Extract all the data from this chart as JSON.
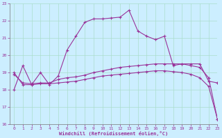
{
  "xlabel": "Windchill (Refroidissement éolien,°C)",
  "background_color": "#cceeff",
  "grid_color": "#aaddcc",
  "line_color": "#993399",
  "x_hours": [
    0,
    1,
    2,
    3,
    4,
    5,
    6,
    7,
    8,
    9,
    10,
    11,
    12,
    13,
    14,
    15,
    16,
    17,
    18,
    19,
    20,
    21,
    22,
    23
  ],
  "series1": [
    18.0,
    19.4,
    18.3,
    19.0,
    18.3,
    18.8,
    20.3,
    21.1,
    21.9,
    22.1,
    22.1,
    22.15,
    22.2,
    22.6,
    21.4,
    21.1,
    20.9,
    21.1,
    19.4,
    19.5,
    19.5,
    19.5,
    18.5,
    18.4
  ],
  "series2": [
    18.9,
    18.4,
    18.35,
    18.4,
    18.4,
    18.6,
    18.7,
    18.75,
    18.85,
    19.0,
    19.1,
    19.2,
    19.3,
    19.35,
    19.4,
    19.45,
    19.5,
    19.5,
    19.5,
    19.5,
    19.4,
    19.3,
    18.7,
    16.3
  ],
  "series3": [
    19.0,
    18.3,
    18.3,
    18.35,
    18.35,
    18.4,
    18.45,
    18.5,
    18.6,
    18.7,
    18.8,
    18.85,
    18.9,
    18.95,
    19.0,
    19.05,
    19.1,
    19.1,
    19.05,
    19.0,
    18.9,
    18.7,
    18.2,
    16.3
  ],
  "ylim": [
    16,
    23
  ],
  "xlim": [
    -0.5,
    23
  ],
  "yticks": [
    16,
    17,
    18,
    19,
    20,
    21,
    22,
    23
  ],
  "xticks": [
    0,
    1,
    2,
    3,
    4,
    5,
    6,
    7,
    8,
    9,
    10,
    11,
    12,
    13,
    14,
    15,
    16,
    17,
    18,
    19,
    20,
    21,
    22,
    23
  ]
}
